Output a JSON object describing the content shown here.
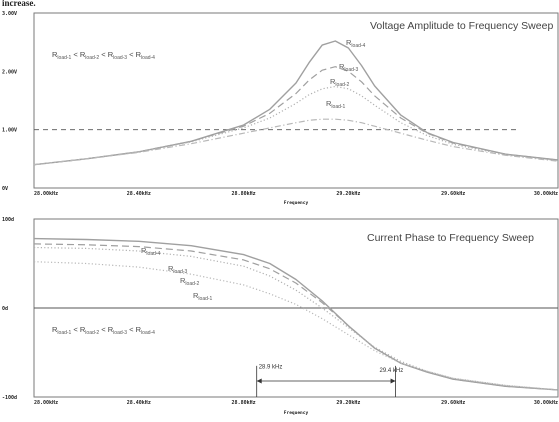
{
  "page_header_fragment": "increase.",
  "colors": {
    "frame": "#7a7a7a",
    "series": [
      "#a0a0a0",
      "#a0a0a0",
      "#b0b0b0",
      "#b8b8b8"
    ],
    "reference": "#555555"
  },
  "chart_data": [
    {
      "type": "line",
      "title": "Voltage Amplitude to Frequency Sweep",
      "xlabel": "Frequency",
      "x_ticks": [
        "28.00kHz",
        "28.40kHz",
        "28.80kHz",
        "29.20kHz",
        "29.60kHz",
        "30.00kHz"
      ],
      "y_ticks": [
        "0V",
        "1.00V",
        "2.00V",
        "3.00V"
      ],
      "xlim": [
        28.0,
        30.0
      ],
      "ylim": [
        0,
        3.0
      ],
      "annotation": "Rload-1 < Rload-2 < Rload-3 < Rload-4",
      "reference_line": {
        "y": 1.0,
        "style": "dashed"
      },
      "series": [
        {
          "name": "Rload-4",
          "style": "solid",
          "x": [
            28.0,
            28.2,
            28.4,
            28.6,
            28.8,
            28.9,
            29.0,
            29.05,
            29.1,
            29.15,
            29.2,
            29.25,
            29.3,
            29.4,
            29.5,
            29.6,
            29.8,
            30.0
          ],
          "y": [
            0.4,
            0.5,
            0.62,
            0.8,
            1.08,
            1.35,
            1.8,
            2.15,
            2.45,
            2.52,
            2.4,
            2.1,
            1.75,
            1.25,
            0.95,
            0.78,
            0.58,
            0.48
          ]
        },
        {
          "name": "Rload-3",
          "style": "dashed",
          "x": [
            28.0,
            28.2,
            28.4,
            28.6,
            28.8,
            28.9,
            29.0,
            29.05,
            29.1,
            29.15,
            29.2,
            29.25,
            29.3,
            29.4,
            29.5,
            29.6,
            29.8,
            30.0
          ],
          "y": [
            0.4,
            0.5,
            0.62,
            0.8,
            1.06,
            1.28,
            1.62,
            1.85,
            2.02,
            2.08,
            2.0,
            1.82,
            1.58,
            1.2,
            0.94,
            0.77,
            0.58,
            0.48
          ]
        },
        {
          "name": "Rload-2",
          "style": "dotted",
          "x": [
            28.0,
            28.2,
            28.4,
            28.6,
            28.8,
            28.9,
            29.0,
            29.05,
            29.1,
            29.15,
            29.2,
            29.25,
            29.3,
            29.4,
            29.5,
            29.6,
            29.8,
            30.0
          ],
          "y": [
            0.4,
            0.5,
            0.62,
            0.79,
            1.03,
            1.2,
            1.45,
            1.6,
            1.7,
            1.74,
            1.7,
            1.58,
            1.42,
            1.12,
            0.9,
            0.75,
            0.57,
            0.47
          ]
        },
        {
          "name": "Rload-1",
          "style": "dashdot",
          "x": [
            28.0,
            28.2,
            28.4,
            28.6,
            28.8,
            28.9,
            29.0,
            29.05,
            29.1,
            29.15,
            29.2,
            29.25,
            29.3,
            29.4,
            29.5,
            29.6,
            29.8,
            30.0
          ],
          "y": [
            0.4,
            0.5,
            0.61,
            0.76,
            0.94,
            1.03,
            1.12,
            1.16,
            1.18,
            1.18,
            1.16,
            1.12,
            1.06,
            0.94,
            0.82,
            0.71,
            0.56,
            0.46
          ]
        }
      ]
    },
    {
      "type": "line",
      "title": "Current Phase to Frequency Sweep",
      "xlabel": "Frequency",
      "x_ticks": [
        "28.00kHz",
        "28.40kHz",
        "28.80kHz",
        "29.20kHz",
        "29.60kHz",
        "30.00kHz"
      ],
      "y_ticks": [
        "-100d",
        "0d",
        "100d"
      ],
      "xlim": [
        28.0,
        30.0
      ],
      "ylim": [
        -100,
        100
      ],
      "annotation": "Rload-1 < Rload-2 < Rload-3 < Rload-4",
      "reference_line": {
        "y": 0,
        "style": "solid"
      },
      "markers": [
        {
          "label": "28.9 kHz",
          "x": 28.85
        },
        {
          "label": "29.4 kHz",
          "x": 29.38
        }
      ],
      "series": [
        {
          "name": "Rload-4",
          "style": "solid",
          "x": [
            28.0,
            28.2,
            28.4,
            28.6,
            28.8,
            28.9,
            29.0,
            29.1,
            29.2,
            29.3,
            29.4,
            29.5,
            29.6,
            29.8,
            30.0
          ],
          "y": [
            78,
            77,
            75,
            70,
            60,
            50,
            32,
            8,
            -20,
            -45,
            -62,
            -72,
            -80,
            -88,
            -92
          ]
        },
        {
          "name": "Rload-3",
          "style": "dashed",
          "x": [
            28.0,
            28.2,
            28.4,
            28.6,
            28.8,
            28.9,
            29.0,
            29.1,
            29.2,
            29.3,
            29.4,
            29.5,
            29.6,
            29.8,
            30.0
          ],
          "y": [
            72,
            71,
            69,
            64,
            54,
            44,
            28,
            6,
            -20,
            -45,
            -62,
            -72,
            -80,
            -88,
            -92
          ]
        },
        {
          "name": "Rload-2",
          "style": "dotted",
          "x": [
            28.0,
            28.2,
            28.4,
            28.6,
            28.8,
            28.9,
            29.0,
            29.1,
            29.2,
            29.3,
            29.4,
            29.5,
            29.6,
            29.8,
            30.0
          ],
          "y": [
            68,
            67,
            64,
            58,
            47,
            36,
            20,
            0,
            -22,
            -44,
            -60,
            -71,
            -79,
            -87,
            -92
          ]
        },
        {
          "name": "Rload-1",
          "style": "dotted",
          "x": [
            28.0,
            28.2,
            28.4,
            28.6,
            28.8,
            28.9,
            29.0,
            29.1,
            29.2,
            29.3,
            29.4,
            29.5,
            29.6,
            29.8,
            30.0
          ],
          "y": [
            52,
            50,
            46,
            38,
            26,
            16,
            4,
            -12,
            -30,
            -48,
            -62,
            -71,
            -79,
            -87,
            -92
          ]
        }
      ]
    }
  ]
}
